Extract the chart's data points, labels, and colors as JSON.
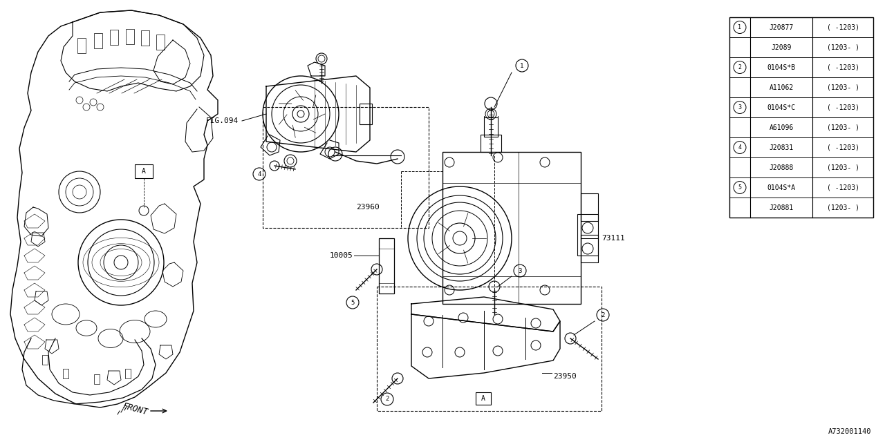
{
  "bg_color": "#ffffff",
  "line_color": "#000000",
  "diagram_id": "A732001140",
  "fig094_label": "FIG.094",
  "table": {
    "rows": [
      {
        "circle": "1",
        "part": "J20877",
        "range": "( -1203)"
      },
      {
        "circle": "",
        "part": "J2089",
        "range": "(1203- )"
      },
      {
        "circle": "2",
        "part": "0104S*B",
        "range": "( -1203)"
      },
      {
        "circle": "",
        "part": "A11062",
        "range": "(1203- )"
      },
      {
        "circle": "3",
        "part": "0104S*C",
        "range": "( -1203)"
      },
      {
        "circle": "",
        "part": "A61096",
        "range": "(1203- )"
      },
      {
        "circle": "4",
        "part": "J20831",
        "range": "( -1203)"
      },
      {
        "circle": "",
        "part": "J20888",
        "range": "(1203- )"
      },
      {
        "circle": "5",
        "part": "0104S*A",
        "range": "( -1203)"
      },
      {
        "circle": "",
        "part": "J20881",
        "range": "(1203- )"
      }
    ]
  }
}
